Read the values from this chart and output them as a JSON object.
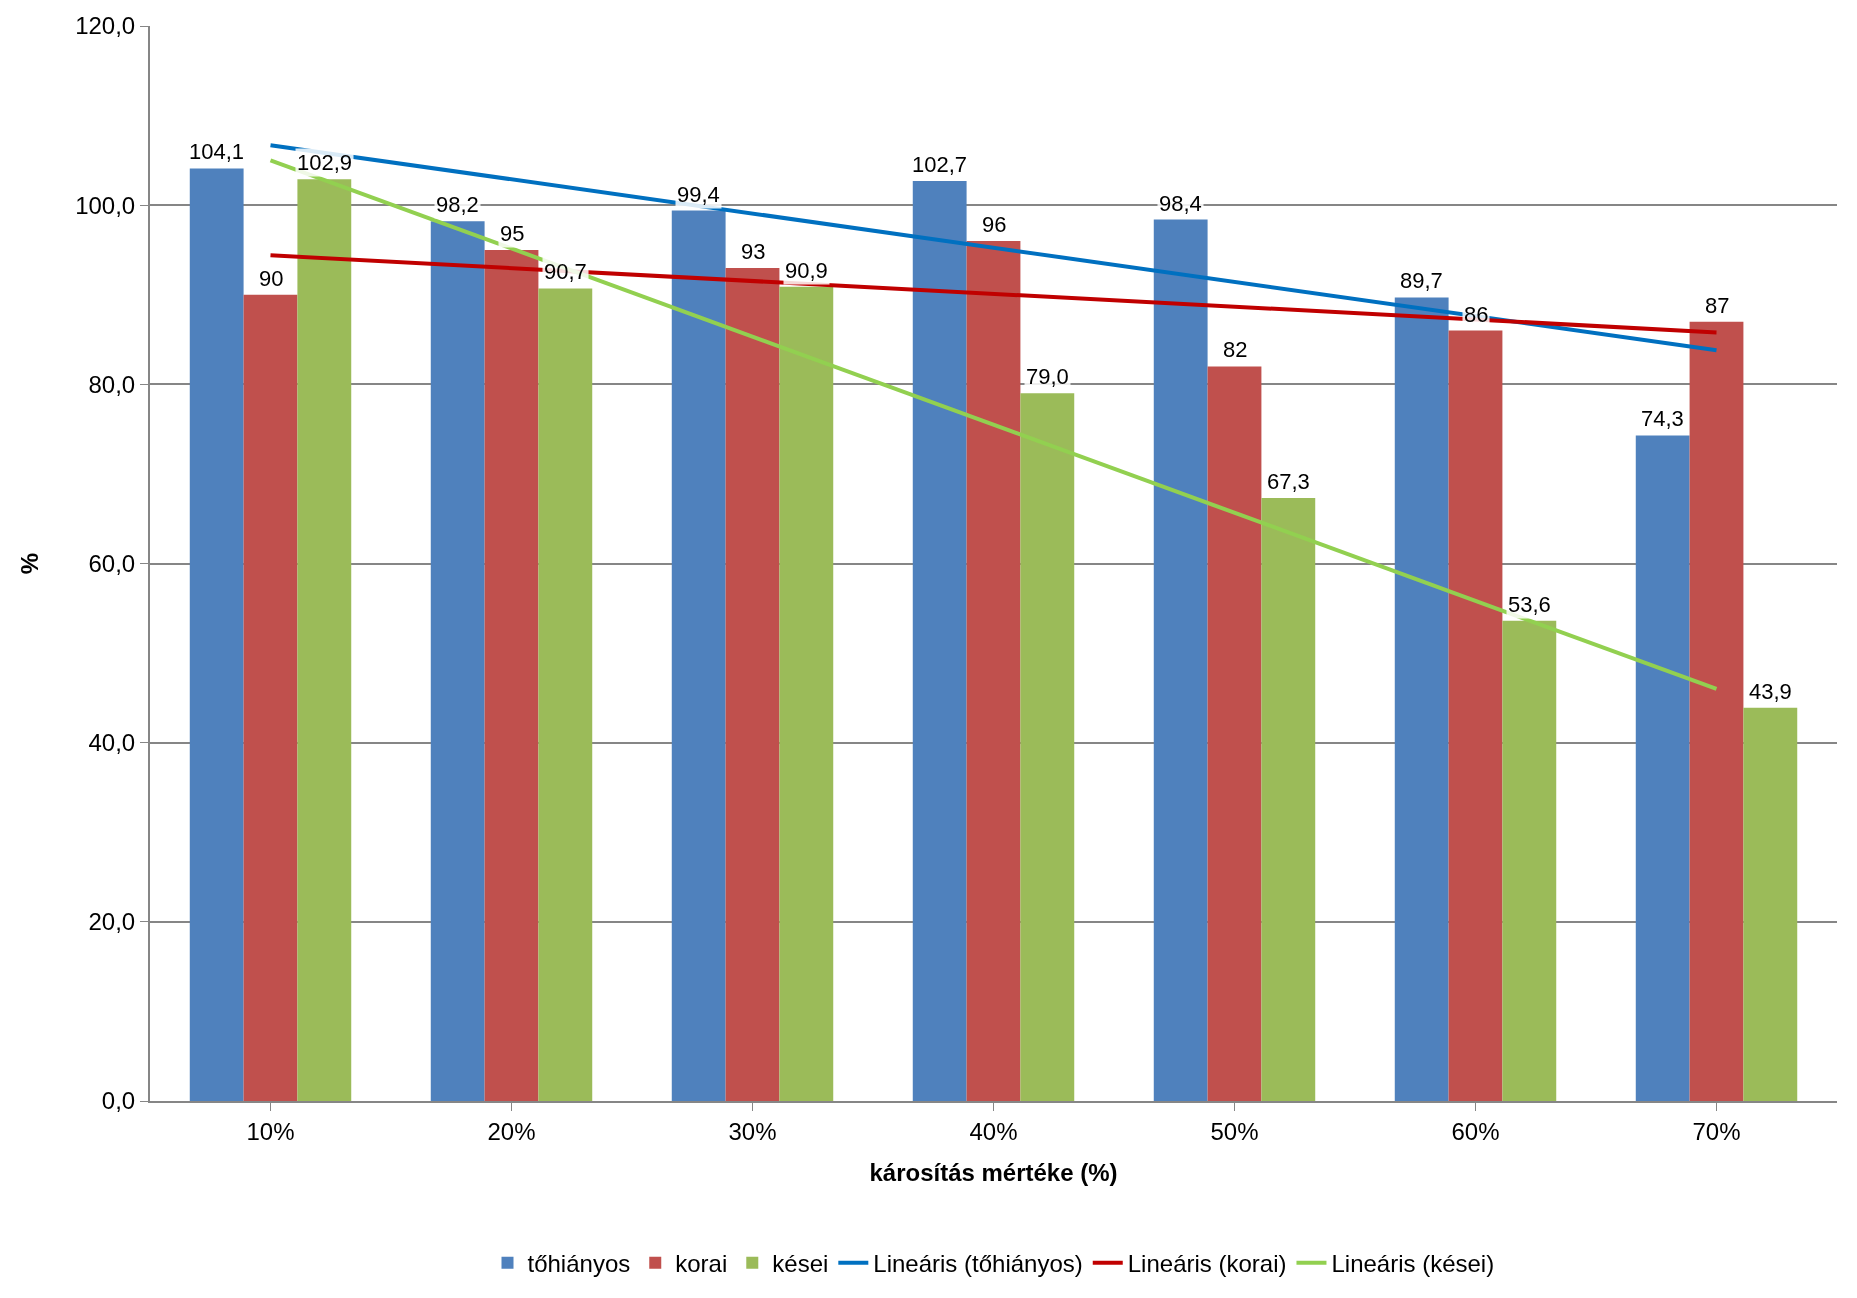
{
  "chart_data": {
    "type": "bar",
    "xlabel": "károsítás mértéke (%)",
    "ylabel": "%",
    "categories": [
      "10%",
      "20%",
      "30%",
      "40%",
      "50%",
      "60%",
      "70%"
    ],
    "series": [
      {
        "name": "tőhiányos",
        "color": "#4f81bd",
        "values": [
          104.1,
          98.2,
          99.4,
          102.7,
          98.4,
          89.7,
          74.3
        ],
        "value_labels": [
          "104,1",
          "98,2",
          "99,4",
          "102,7",
          "98,4",
          "89,7",
          "74,3"
        ]
      },
      {
        "name": "korai",
        "color": "#c0504d",
        "values": [
          90,
          95,
          93,
          96,
          82,
          86,
          87
        ],
        "value_labels": [
          "90",
          "95",
          "93",
          "96",
          "82",
          "86",
          "87"
        ]
      },
      {
        "name": "kései",
        "color": "#9bbb59",
        "values": [
          102.9,
          90.7,
          90.9,
          79.0,
          67.3,
          53.6,
          43.9
        ],
        "value_labels": [
          "102,9",
          "90,7",
          "90,9",
          "79,0",
          "67,3",
          "53,6",
          "43,9"
        ]
      },
      {
        "name": "Lineáris (tőhiányos)",
        "type": "line",
        "color": "#0070c0",
        "x": [
          "10%",
          "70%"
        ],
        "values": [
          106.7,
          83.8
        ]
      },
      {
        "name": "Lineáris (korai)",
        "type": "line",
        "color": "#c00000",
        "x": [
          "10%",
          "70%"
        ],
        "values": [
          94.4,
          85.8
        ]
      },
      {
        "name": "Lineáris (kései)",
        "type": "line",
        "color": "#92d050",
        "x": [
          "10%",
          "70%"
        ],
        "values": [
          105.0,
          46.0
        ]
      }
    ],
    "ylim": [
      0,
      120
    ],
    "yticks": [
      {
        "value": 0,
        "label": "0,0"
      },
      {
        "value": 20,
        "label": "20,0"
      },
      {
        "value": 40,
        "label": "40,0"
      },
      {
        "value": 60,
        "label": "60,0"
      },
      {
        "value": 80,
        "label": "80,0"
      },
      {
        "value": 100,
        "label": "100,0"
      },
      {
        "value": 120,
        "label": "120,0"
      }
    ],
    "grid": "y",
    "legend": "bottom",
    "marker": "none",
    "line_style": "solid"
  }
}
